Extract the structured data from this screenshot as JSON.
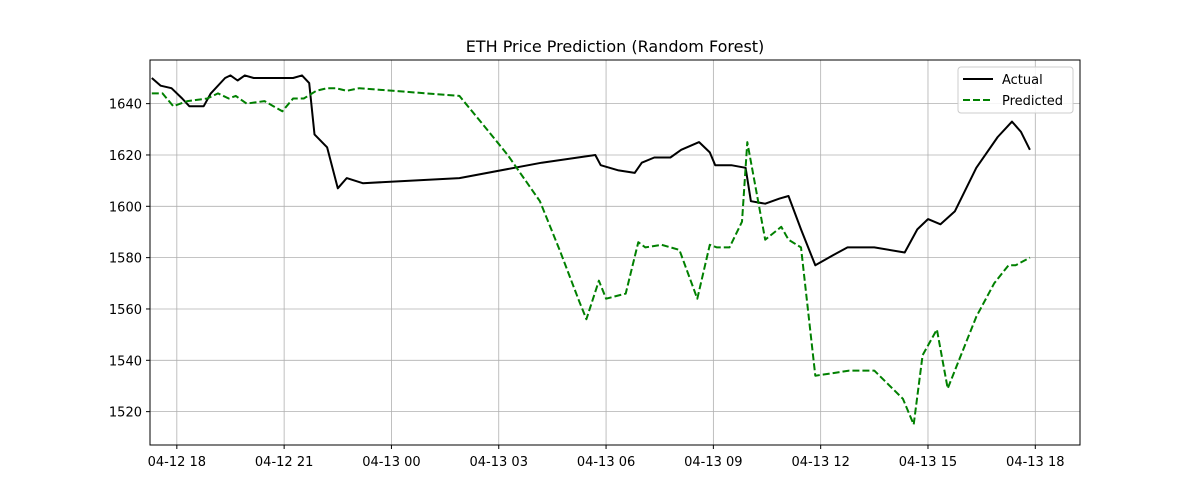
{
  "chart_data": {
    "type": "line",
    "title": "ETH Price Prediction (Random Forest)",
    "xlabel": "",
    "ylabel": "",
    "x_unit": "hours after 04-12 18:00",
    "xlim": [
      -0.75,
      25.25
    ],
    "ylim": [
      1507,
      1657
    ],
    "grid": true,
    "legend_position": "upper right",
    "x_ticks": [
      {
        "value": 0,
        "label": "04-12 18"
      },
      {
        "value": 3,
        "label": "04-12 21"
      },
      {
        "value": 6,
        "label": "04-13 00"
      },
      {
        "value": 9,
        "label": "04-13 03"
      },
      {
        "value": 12,
        "label": "04-13 06"
      },
      {
        "value": 15,
        "label": "04-13 09"
      },
      {
        "value": 18,
        "label": "04-13 12"
      },
      {
        "value": 21,
        "label": "04-13 15"
      },
      {
        "value": 24,
        "label": "04-13 18"
      }
    ],
    "y_ticks": [
      {
        "value": 1520,
        "label": "1520"
      },
      {
        "value": 1540,
        "label": "1540"
      },
      {
        "value": 1560,
        "label": "1560"
      },
      {
        "value": 1580,
        "label": "1580"
      },
      {
        "value": 1600,
        "label": "1600"
      },
      {
        "value": 1620,
        "label": "1620"
      },
      {
        "value": 1640,
        "label": "1640"
      }
    ],
    "series": [
      {
        "name": "Actual",
        "color": "#000000",
        "dash": "solid",
        "points": [
          [
            -0.7,
            1650
          ],
          [
            -0.45,
            1647
          ],
          [
            -0.15,
            1646
          ],
          [
            0.15,
            1642
          ],
          [
            0.35,
            1639
          ],
          [
            0.75,
            1639
          ],
          [
            0.95,
            1644
          ],
          [
            1.35,
            1650
          ],
          [
            1.5,
            1651
          ],
          [
            1.7,
            1649
          ],
          [
            1.9,
            1651
          ],
          [
            2.15,
            1650
          ],
          [
            2.45,
            1650
          ],
          [
            2.7,
            1650
          ],
          [
            2.9,
            1650
          ],
          [
            3.25,
            1650
          ],
          [
            3.5,
            1651
          ],
          [
            3.7,
            1648
          ],
          [
            3.85,
            1628
          ],
          [
            4.2,
            1623
          ],
          [
            4.5,
            1607
          ],
          [
            4.75,
            1611
          ],
          [
            5.2,
            1609
          ],
          [
            7.9,
            1611
          ],
          [
            10.2,
            1617
          ],
          [
            11.7,
            1620
          ],
          [
            11.85,
            1616
          ],
          [
            12.35,
            1614
          ],
          [
            12.8,
            1613
          ],
          [
            13.0,
            1617
          ],
          [
            13.35,
            1619
          ],
          [
            13.8,
            1619
          ],
          [
            14.1,
            1622
          ],
          [
            14.6,
            1625
          ],
          [
            14.9,
            1621
          ],
          [
            15.05,
            1616
          ],
          [
            15.5,
            1616
          ],
          [
            15.9,
            1615
          ],
          [
            16.05,
            1602
          ],
          [
            16.45,
            1601
          ],
          [
            16.85,
            1603
          ],
          [
            17.1,
            1604
          ],
          [
            17.45,
            1591
          ],
          [
            17.85,
            1577
          ],
          [
            18.35,
            1581
          ],
          [
            18.75,
            1584
          ],
          [
            19.5,
            1584
          ],
          [
            20.35,
            1582
          ],
          [
            20.7,
            1591
          ],
          [
            21.0,
            1595
          ],
          [
            21.35,
            1593
          ],
          [
            21.75,
            1598
          ],
          [
            22.35,
            1615
          ],
          [
            22.95,
            1627
          ],
          [
            23.35,
            1633
          ],
          [
            23.6,
            1629
          ],
          [
            23.85,
            1622
          ]
        ]
      },
      {
        "name": "Predicted",
        "color": "#008000",
        "dash": "dashed",
        "points": [
          [
            -0.7,
            1644
          ],
          [
            -0.4,
            1644
          ],
          [
            -0.1,
            1639
          ],
          [
            0.3,
            1641
          ],
          [
            0.85,
            1642
          ],
          [
            1.15,
            1644
          ],
          [
            1.45,
            1642
          ],
          [
            1.65,
            1643
          ],
          [
            1.95,
            1640
          ],
          [
            2.45,
            1641
          ],
          [
            2.7,
            1639
          ],
          [
            2.95,
            1637
          ],
          [
            3.25,
            1642
          ],
          [
            3.55,
            1642
          ],
          [
            3.9,
            1645
          ],
          [
            4.2,
            1646
          ],
          [
            4.45,
            1646
          ],
          [
            4.75,
            1645
          ],
          [
            5.1,
            1646
          ],
          [
            7.9,
            1643
          ],
          [
            8.55,
            1632
          ],
          [
            9.25,
            1620
          ],
          [
            10.15,
            1602
          ],
          [
            10.7,
            1583
          ],
          [
            11.25,
            1563
          ],
          [
            11.45,
            1556
          ],
          [
            11.8,
            1571
          ],
          [
            12.0,
            1564
          ],
          [
            12.55,
            1566
          ],
          [
            12.9,
            1586
          ],
          [
            13.1,
            1584
          ],
          [
            13.55,
            1585
          ],
          [
            14.05,
            1583
          ],
          [
            14.55,
            1564
          ],
          [
            14.9,
            1585
          ],
          [
            15.1,
            1584
          ],
          [
            15.45,
            1584
          ],
          [
            15.8,
            1594
          ],
          [
            15.95,
            1625
          ],
          [
            16.45,
            1587
          ],
          [
            16.9,
            1592
          ],
          [
            17.1,
            1587
          ],
          [
            17.45,
            1584
          ],
          [
            17.85,
            1534
          ],
          [
            18.35,
            1535
          ],
          [
            18.8,
            1536
          ],
          [
            19.5,
            1536
          ],
          [
            20.3,
            1525
          ],
          [
            20.6,
            1515
          ],
          [
            20.85,
            1542
          ],
          [
            21.25,
            1552
          ],
          [
            21.55,
            1529
          ],
          [
            21.95,
            1543
          ],
          [
            22.35,
            1557
          ],
          [
            22.85,
            1570
          ],
          [
            23.25,
            1577
          ],
          [
            23.45,
            1577
          ],
          [
            23.85,
            1580
          ]
        ]
      }
    ]
  }
}
